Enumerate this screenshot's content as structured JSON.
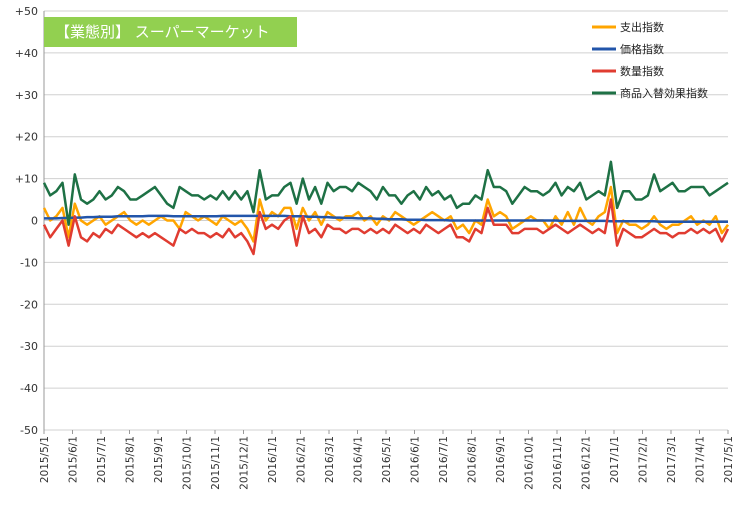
{
  "chart_data": {
    "type": "line",
    "title": "【業態別】 スーパーマーケット",
    "title_bg_color": "#92D050",
    "ylim": [
      -50,
      50
    ],
    "yticks": [
      "+50",
      "+40",
      "+30",
      "+20",
      "+10",
      "0",
      "-10",
      "-20",
      "-30",
      "-40",
      "-50"
    ],
    "ytick_values": [
      50,
      40,
      30,
      20,
      10,
      0,
      -10,
      -20,
      -30,
      -40,
      -50
    ],
    "x_start": "2015-05-01",
    "x_end": "2017-05-01",
    "xticks": [
      "2015/5/1",
      "2015/6/1",
      "2015/7/1",
      "2015/8/1",
      "2015/9/1",
      "2015/10/1",
      "2015/11/1",
      "2015/12/1",
      "2016/1/1",
      "2016/2/1",
      "2016/3/1",
      "2016/4/1",
      "2016/5/1",
      "2016/6/1",
      "2016/7/1",
      "2016/8/1",
      "2016/9/1",
      "2016/10/1",
      "2016/11/1",
      "2016/12/1",
      "2017/1/1",
      "2017/2/1",
      "2017/3/1",
      "2017/4/1",
      "2017/5/1"
    ],
    "grid": true,
    "legend_position": "top-right",
    "series": [
      {
        "name": "支出指数",
        "color": "#FFA500",
        "values": [
          3,
          0,
          1,
          3,
          -4,
          4,
          0,
          -1,
          0,
          1,
          -1,
          0,
          1,
          2,
          0,
          -1,
          0,
          -1,
          0,
          1,
          0,
          0,
          -2,
          2,
          1,
          0,
          1,
          0,
          -1,
          1,
          0,
          -1,
          0,
          -2,
          -5,
          5,
          0,
          2,
          1,
          3,
          3,
          -2,
          3,
          0,
          2,
          -1,
          2,
          1,
          0,
          1,
          1,
          2,
          0,
          1,
          -1,
          1,
          0,
          2,
          1,
          0,
          -1,
          0,
          1,
          2,
          1,
          0,
          1,
          -2,
          -1,
          -3,
          0,
          -1,
          5,
          1,
          2,
          1,
          -2,
          -1,
          0,
          1,
          0,
          0,
          -2,
          1,
          -1,
          2,
          -1,
          3,
          0,
          -1,
          1,
          2,
          8,
          -3,
          0,
          -1,
          -1,
          -2,
          -1,
          1,
          -1,
          -2,
          -1,
          -1,
          0,
          1,
          -1,
          0,
          -1,
          1,
          -3,
          -1
        ],
        "values_note": ""
      },
      {
        "name": "価格指数",
        "color": "#2255AA",
        "values": [
          0.5,
          0.5,
          0.5,
          0.6,
          0.6,
          0.7,
          0.7,
          0.8,
          0.8,
          0.9,
          0.9,
          0.9,
          1.0,
          1.0,
          1.0,
          1.0,
          1.0,
          1.1,
          1.1,
          1.1,
          1.1,
          1.0,
          1.0,
          1.0,
          1.0,
          1.0,
          1.0,
          1.0,
          1.0,
          1.1,
          1.1,
          1.1,
          1.1,
          1.1,
          1.1,
          1.1,
          1.1,
          1.1,
          1.1,
          1.1,
          1.0,
          1.0,
          1.0,
          0.9,
          0.9,
          0.8,
          0.8,
          0.7,
          0.7,
          0.6,
          0.6,
          0.5,
          0.5,
          0.5,
          0.4,
          0.4,
          0.3,
          0.3,
          0.3,
          0.2,
          0.2,
          0.2,
          0.1,
          0.1,
          0.1,
          0.1,
          0.0,
          0.0,
          0.0,
          0.0,
          0.0,
          0.0,
          0.0,
          0.0,
          0.0,
          0.0,
          0.0,
          0.0,
          0.0,
          0.0,
          0.0,
          0.0,
          0.0,
          0.0,
          -0.1,
          -0.1,
          -0.1,
          -0.1,
          -0.1,
          -0.1,
          -0.1,
          -0.1,
          -0.2,
          -0.2,
          -0.2,
          -0.2,
          -0.2,
          -0.2,
          -0.2,
          -0.2,
          -0.3,
          -0.3,
          -0.3,
          -0.3,
          -0.3,
          -0.3,
          -0.3,
          -0.3,
          -0.3,
          -0.3,
          -0.3,
          -0.3
        ]
      },
      {
        "name": "数量指数",
        "color": "#E03C31",
        "values": [
          -1,
          -4,
          -2,
          0,
          -6,
          1,
          -4,
          -5,
          -3,
          -4,
          -2,
          -3,
          -1,
          -2,
          -3,
          -4,
          -3,
          -4,
          -3,
          -4,
          -5,
          -6,
          -2,
          -3,
          -2,
          -3,
          -3,
          -4,
          -3,
          -4,
          -2,
          -4,
          -3,
          -5,
          -8,
          2,
          -2,
          -1,
          -2,
          0,
          1,
          -6,
          1,
          -3,
          -2,
          -4,
          -1,
          -2,
          -2,
          -3,
          -2,
          -2,
          -3,
          -2,
          -3,
          -2,
          -3,
          -1,
          -2,
          -3,
          -2,
          -3,
          -1,
          -2,
          -3,
          -2,
          -1,
          -4,
          -4,
          -5,
          -2,
          -3,
          3,
          -1,
          -1,
          -1,
          -3,
          -3,
          -2,
          -2,
          -2,
          -3,
          -2,
          -1,
          -2,
          -3,
          -2,
          -1,
          -2,
          -3,
          -2,
          -3,
          5,
          -6,
          -2,
          -3,
          -4,
          -4,
          -3,
          -2,
          -3,
          -3,
          -4,
          -3,
          -3,
          -2,
          -3,
          -2,
          -3,
          -2,
          -5,
          -2
        ]
      },
      {
        "name": "商品入替効果指数",
        "color": "#1E7145",
        "values": [
          9,
          6,
          7,
          9,
          -1,
          11,
          5,
          4,
          5,
          7,
          5,
          6,
          8,
          7,
          5,
          5,
          6,
          7,
          8,
          6,
          4,
          3,
          8,
          7,
          6,
          6,
          5,
          6,
          5,
          7,
          5,
          7,
          5,
          7,
          2,
          12,
          5,
          6,
          6,
          8,
          9,
          4,
          10,
          5,
          8,
          4,
          9,
          7,
          8,
          8,
          7,
          9,
          8,
          7,
          5,
          8,
          6,
          6,
          4,
          6,
          7,
          5,
          8,
          6,
          7,
          5,
          6,
          3,
          4,
          4,
          6,
          5,
          12,
          8,
          8,
          7,
          4,
          6,
          8,
          7,
          7,
          6,
          7,
          9,
          6,
          8,
          7,
          9,
          5,
          6,
          7,
          6,
          14,
          3,
          7,
          7,
          5,
          5,
          6,
          11,
          7,
          8,
          9,
          7,
          7,
          8,
          8,
          8,
          6,
          7,
          8,
          9
        ]
      }
    ]
  }
}
